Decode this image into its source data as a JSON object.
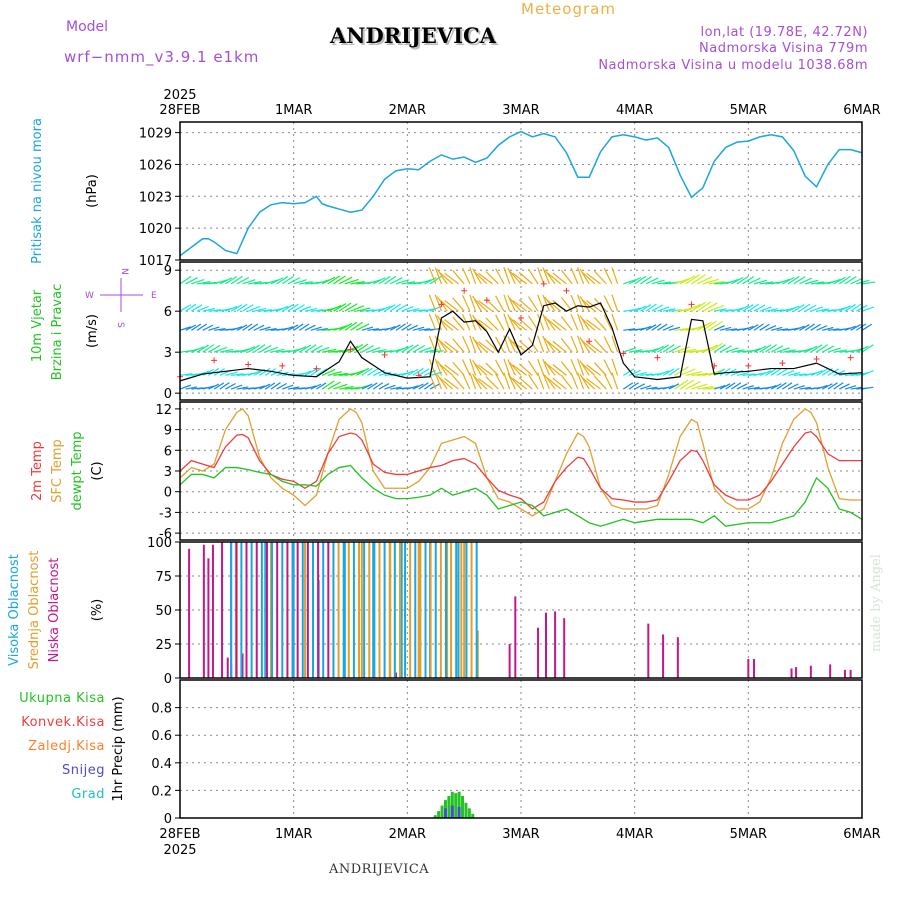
{
  "header": {
    "model_label": "Model",
    "model_name": "wrf−nmm_v3.9.1  e1km",
    "station": "ANDRIJEVICA",
    "product": "Meteogram",
    "coords": "lon,lat (19.78E, 42.72N)",
    "elevation": "Nadmorska Visina 779m",
    "model_elevation": "Nadmorska Visina u modelu 1038.68m",
    "footer_station": "ANDRIJEVICA",
    "credit": "made by Angel"
  },
  "colors": {
    "pressure": "#1aa6e0",
    "temp2m": "#f03c3c",
    "sfc_temp": "#e0a030",
    "dewpt": "#22c322",
    "wind_gust_marker": "#ff3030",
    "wind_speed": "#000000",
    "cloud_high": "#1aa6e0",
    "cloud_mid": "#e0a030",
    "cloud_low": "#c4178a",
    "precip_total": "#22c322",
    "precip_conv": "#f03c3c",
    "precip_frz": "#ff7f2a",
    "snow": "#4a4adc",
    "hail": "#20c0c0",
    "title_purple": "#a450d6",
    "title_orange": "#f0b040"
  },
  "time_axis": {
    "year": "2025",
    "labels": [
      "28FEB",
      "1MAR",
      "2MAR",
      "3MAR",
      "4MAR",
      "5MAR",
      "6MAR"
    ]
  },
  "chart_data": [
    {
      "type": "line",
      "ylabel_left": "Pritisak na nivou mora",
      "unit": "(hPa)",
      "ylim": [
        1017,
        1030
      ],
      "yticks": [
        "1017",
        "1020",
        "1023",
        "1026",
        "1029"
      ],
      "grid": true,
      "x_unit": "days since 28FEB 00Z",
      "series": [
        {
          "name": "Pritisak na nivou mora",
          "x": [
            0,
            0.1,
            0.2,
            0.25,
            0.3,
            0.4,
            0.5,
            0.55,
            0.6,
            0.7,
            0.8,
            0.9,
            1.0,
            1.1,
            1.2,
            1.25,
            1.3,
            1.4,
            1.5,
            1.6,
            1.7,
            1.8,
            1.9,
            2.0,
            2.1,
            2.2,
            2.3,
            2.4,
            2.5,
            2.6,
            2.7,
            2.8,
            2.9,
            3.0,
            3.1,
            3.2,
            3.3,
            3.4,
            3.5,
            3.6,
            3.7,
            3.8,
            3.9,
            4.0,
            4.1,
            4.2,
            4.3,
            4.4,
            4.5,
            4.6,
            4.7,
            4.8,
            4.9,
            5.0,
            5.1,
            5.2,
            5.3,
            5.4,
            5.5,
            5.6,
            5.7,
            5.8,
            5.9,
            6.0
          ],
          "values": [
            1017.4,
            1018.2,
            1019.0,
            1019.0,
            1018.7,
            1017.9,
            1017.6,
            1018.8,
            1020.0,
            1021.5,
            1022.2,
            1022.4,
            1022.3,
            1022.4,
            1023.0,
            1022.3,
            1022.1,
            1021.8,
            1021.5,
            1021.7,
            1023.0,
            1024.6,
            1025.4,
            1025.6,
            1025.5,
            1026.3,
            1026.9,
            1026.5,
            1026.7,
            1026.2,
            1026.6,
            1027.8,
            1028.6,
            1029.1,
            1028.6,
            1028.9,
            1028.6,
            1027.1,
            1024.8,
            1024.8,
            1027.2,
            1028.6,
            1028.8,
            1028.6,
            1028.3,
            1028.5,
            1027.6,
            1025.0,
            1022.9,
            1023.8,
            1026.3,
            1027.6,
            1028.1,
            1028.2,
            1028.6,
            1028.8,
            1028.6,
            1027.3,
            1024.9,
            1023.9,
            1026.0,
            1027.4,
            1027.4,
            1027.1
          ]
        }
      ]
    },
    {
      "type": "line",
      "ylabel_left": [
        "10m Vjetar",
        "Brzina i Pravac"
      ],
      "unit": "(m/s)",
      "compass": [
        "N",
        "S",
        "W",
        "E"
      ],
      "ylim": [
        -0.5,
        9.6
      ],
      "yticks": [
        "0",
        "3",
        "6",
        "9"
      ],
      "grid": true,
      "x_unit": "days since 28FEB 00Z",
      "series": [
        {
          "name": "wind speed",
          "x": [
            0,
            0.2,
            0.4,
            0.6,
            0.8,
            1.0,
            1.2,
            1.4,
            1.5,
            1.6,
            1.8,
            2.0,
            2.2,
            2.3,
            2.4,
            2.5,
            2.6,
            2.7,
            2.8,
            2.9,
            3.0,
            3.1,
            3.2,
            3.3,
            3.4,
            3.5,
            3.6,
            3.7,
            3.8,
            3.9,
            4.0,
            4.2,
            4.4,
            4.5,
            4.6,
            4.7,
            4.8,
            5.0,
            5.2,
            5.4,
            5.6,
            5.8,
            6.0
          ],
          "values": [
            0.9,
            1.4,
            1.6,
            1.8,
            1.6,
            1.3,
            1.2,
            2.3,
            3.8,
            2.6,
            1.5,
            1.1,
            1.2,
            5.5,
            6.0,
            5.2,
            5.3,
            4.5,
            3.0,
            4.7,
            2.8,
            3.5,
            6.4,
            6.6,
            6.0,
            6.4,
            6.3,
            6.6,
            4.8,
            2.2,
            1.2,
            1.0,
            1.2,
            5.4,
            5.3,
            1.4,
            1.5,
            1.6,
            1.8,
            1.8,
            2.2,
            1.4,
            1.5
          ]
        },
        {
          "name": "wind gust",
          "x": [
            0,
            0.3,
            0.6,
            0.9,
            1.2,
            1.5,
            1.8,
            2.1,
            2.3,
            2.5,
            2.7,
            3.0,
            3.2,
            3.4,
            3.6,
            3.9,
            4.2,
            4.5,
            4.7,
            5.0,
            5.3,
            5.6,
            5.9
          ],
          "values": [
            1.2,
            2.4,
            2.1,
            2.0,
            1.8,
            3.2,
            2.8,
            1.3,
            6.5,
            7.5,
            6.8,
            5.5,
            8.0,
            7.5,
            3.8,
            2.9,
            2.6,
            6.5,
            2.0,
            2.0,
            2.2,
            2.5,
            2.6
          ]
        }
      ]
    },
    {
      "type": "line",
      "ylabel_left": [
        "2m Temp",
        "SFC Temp",
        "dewpt Temp"
      ],
      "unit": "(C)",
      "ylim": [
        -7,
        13
      ],
      "yticks": [
        "-6",
        "-3",
        "0",
        "3",
        "6",
        "9",
        "12"
      ],
      "grid": true,
      "x_unit": "days since 28FEB 00Z",
      "series": [
        {
          "name": "2m Temp",
          "x": [
            0,
            0.1,
            0.2,
            0.3,
            0.4,
            0.5,
            0.55,
            0.6,
            0.7,
            0.8,
            0.9,
            1.0,
            1.1,
            1.2,
            1.3,
            1.4,
            1.5,
            1.55,
            1.6,
            1.7,
            1.8,
            1.9,
            2.0,
            2.1,
            2.2,
            2.3,
            2.4,
            2.5,
            2.6,
            2.7,
            2.8,
            2.9,
            3.0,
            3.1,
            3.2,
            3.3,
            3.4,
            3.5,
            3.55,
            3.6,
            3.7,
            3.8,
            3.9,
            4.0,
            4.1,
            4.2,
            4.3,
            4.4,
            4.5,
            4.55,
            4.6,
            4.7,
            4.8,
            4.9,
            5.0,
            5.1,
            5.2,
            5.3,
            5.4,
            5.5,
            5.55,
            5.6,
            5.7,
            5.8,
            5.9,
            6.0
          ],
          "values": [
            3.0,
            4.5,
            4.0,
            3.5,
            6.5,
            8.2,
            8.3,
            7.8,
            4.5,
            2.5,
            1.8,
            1.5,
            0.5,
            1.5,
            5.5,
            8.0,
            8.5,
            8.3,
            7.5,
            4.0,
            2.8,
            2.5,
            2.5,
            3.0,
            3.5,
            3.8,
            4.5,
            4.8,
            4.0,
            2.0,
            0.2,
            -0.5,
            -1.0,
            -2.5,
            -1.5,
            1.5,
            3.5,
            5.0,
            4.8,
            3.5,
            0.5,
            -1.0,
            -1.2,
            -1.5,
            -1.5,
            -1.2,
            1.5,
            4.5,
            6.0,
            5.8,
            4.5,
            1.0,
            -0.5,
            -1.2,
            -1.2,
            -0.5,
            1.5,
            4.0,
            6.5,
            8.5,
            8.7,
            8.0,
            5.5,
            4.5,
            4.5,
            4.5
          ]
        },
        {
          "name": "SFC Temp",
          "x": [
            0,
            0.1,
            0.2,
            0.3,
            0.4,
            0.5,
            0.55,
            0.6,
            0.7,
            0.8,
            0.9,
            1.0,
            1.1,
            1.2,
            1.3,
            1.4,
            1.5,
            1.55,
            1.6,
            1.7,
            1.8,
            1.9,
            2.0,
            2.1,
            2.2,
            2.3,
            2.4,
            2.5,
            2.6,
            2.7,
            2.8,
            2.9,
            3.0,
            3.1,
            3.2,
            3.3,
            3.4,
            3.5,
            3.55,
            3.6,
            3.7,
            3.8,
            3.9,
            4.0,
            4.1,
            4.2,
            4.3,
            4.4,
            4.5,
            4.55,
            4.6,
            4.7,
            4.8,
            4.9,
            5.0,
            5.1,
            5.2,
            5.3,
            5.4,
            5.5,
            5.55,
            5.6,
            5.7,
            5.8,
            5.9,
            6.0
          ],
          "values": [
            2.0,
            3.5,
            3.0,
            4.0,
            9.0,
            11.5,
            12.0,
            11.0,
            5.0,
            2.0,
            0.5,
            -0.5,
            -2.0,
            -0.5,
            5.5,
            10.5,
            12.0,
            11.5,
            10.0,
            3.0,
            0.5,
            0.5,
            0.5,
            1.5,
            3.5,
            7.0,
            7.5,
            8.0,
            7.0,
            2.0,
            -1.0,
            -1.5,
            -2.5,
            -3.5,
            -2.5,
            1.5,
            5.5,
            8.5,
            8.0,
            6.5,
            0.5,
            -2.0,
            -2.5,
            -2.5,
            -2.5,
            -2.0,
            2.5,
            8.0,
            10.5,
            10.0,
            7.0,
            0.5,
            -1.5,
            -2.5,
            -2.5,
            -1.5,
            2.0,
            7.0,
            10.5,
            12.0,
            11.5,
            10.0,
            3.5,
            -1.0,
            -1.2,
            -1.2
          ]
        },
        {
          "name": "dewpt Temp",
          "x": [
            0,
            0.1,
            0.2,
            0.3,
            0.4,
            0.5,
            0.6,
            0.7,
            0.8,
            0.9,
            1.0,
            1.1,
            1.2,
            1.3,
            1.4,
            1.5,
            1.6,
            1.7,
            1.8,
            1.9,
            2.0,
            2.1,
            2.2,
            2.3,
            2.4,
            2.5,
            2.6,
            2.7,
            2.8,
            2.9,
            3.0,
            3.1,
            3.2,
            3.3,
            3.4,
            3.5,
            3.6,
            3.7,
            3.8,
            3.9,
            4.0,
            4.2,
            4.4,
            4.5,
            4.6,
            4.7,
            4.8,
            5.0,
            5.2,
            5.4,
            5.5,
            5.6,
            5.7,
            5.8,
            5.9,
            6.0
          ],
          "values": [
            1.0,
            2.5,
            2.5,
            2.0,
            3.5,
            3.5,
            3.2,
            2.8,
            2.5,
            1.5,
            1.0,
            1.0,
            0.8,
            2.5,
            3.5,
            3.8,
            2.0,
            0.5,
            -0.5,
            -1.0,
            -1.0,
            -0.8,
            -0.5,
            0.5,
            -0.5,
            0.0,
            0.5,
            -0.5,
            -2.5,
            -2.0,
            -1.5,
            -2.0,
            -3.5,
            -3.0,
            -2.5,
            -3.5,
            -4.5,
            -5.0,
            -4.5,
            -4.0,
            -4.5,
            -4.0,
            -4.0,
            -4.0,
            -4.5,
            -3.5,
            -5.0,
            -4.5,
            -4.5,
            -3.5,
            -1.5,
            2.0,
            0.5,
            -2.5,
            -3.0,
            -4.0
          ]
        }
      ]
    },
    {
      "type": "bar",
      "ylabel_left": [
        "Visoka Oblacnost",
        "Srednja Oblacnost",
        "Niska Oblacnost"
      ],
      "unit": "(%)",
      "ylim": [
        0,
        100
      ],
      "yticks": [
        "0",
        "25",
        "50",
        "75",
        "100"
      ],
      "grid": true,
      "x_unit": "days since 28FEB 00Z",
      "series": [
        {
          "name": "Niska Oblacnost",
          "x": [
            0.08,
            0.21,
            0.25,
            0.29,
            0.37,
            0.42,
            0.45,
            0.55,
            1.9,
            2.9,
            2.95,
            3.15,
            3.22,
            3.3,
            3.38,
            4.12,
            4.25,
            4.38,
            5.0,
            5.05,
            5.38,
            5.42,
            5.55,
            5.72,
            5.85,
            5.9
          ],
          "values": [
            95,
            98,
            88,
            98,
            100,
            15,
            10,
            18,
            4,
            25,
            60,
            37,
            48,
            49,
            44,
            40,
            32,
            30,
            14,
            14,
            7,
            8,
            9,
            10,
            6,
            6
          ]
        },
        {
          "name": "Srednja Oblacnost",
          "x": [
            0.5,
            0.8,
            1.1,
            1.35,
            1.6,
            1.85,
            2.1,
            2.35,
            2.5,
            2.62
          ],
          "values": [
            100,
            100,
            100,
            100,
            100,
            100,
            100,
            100,
            100,
            35
          ]
        },
        {
          "name": "Visoka Oblacnost",
          "x": [
            0.45,
            0.75,
            1.0,
            1.22,
            1.45,
            1.7,
            1.95,
            2.2,
            2.45
          ],
          "values": [
            100,
            100,
            100,
            72,
            100,
            100,
            100,
            100,
            100
          ]
        }
      ]
    },
    {
      "type": "bar",
      "ylabel_left": [
        "Ukupna Kisa",
        "Konvek.Kisa",
        "Zaledj.Kisa",
        "Snijeg",
        "Grad"
      ],
      "unit": "1hr Precip (mm)",
      "ylim": [
        0,
        1
      ],
      "yticks": [
        "0",
        "0.2",
        "0.4",
        "0.6",
        "0.8"
      ],
      "grid": true,
      "x_unit": "days since 28FEB 00Z",
      "series": [
        {
          "name": "Ukupna Kisa",
          "x": [
            2.25,
            2.28,
            2.31,
            2.34,
            2.37,
            2.4,
            2.43,
            2.46,
            2.49,
            2.52,
            2.55,
            2.58
          ],
          "values": [
            0.02,
            0.05,
            0.09,
            0.13,
            0.16,
            0.19,
            0.18,
            0.19,
            0.16,
            0.11,
            0.07,
            0.03
          ]
        },
        {
          "name": "Snijeg",
          "x": [
            2.34,
            2.4,
            2.46
          ],
          "values": [
            0.07,
            0.09,
            0.08
          ]
        }
      ]
    }
  ]
}
